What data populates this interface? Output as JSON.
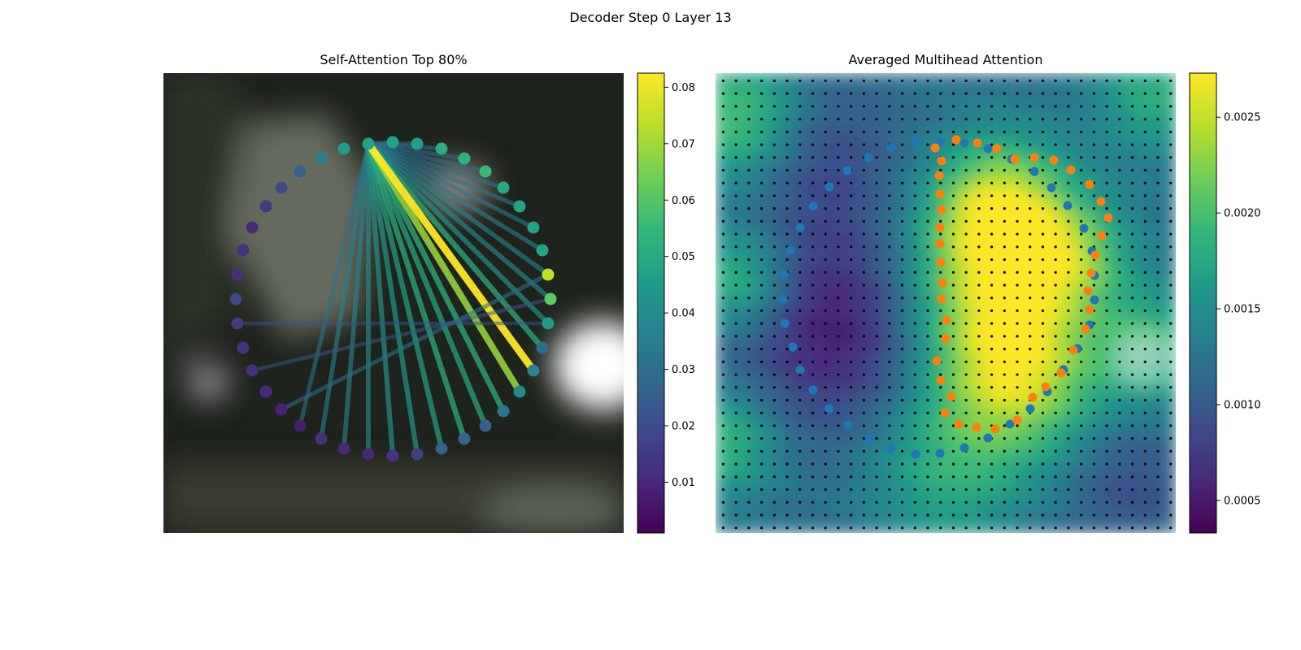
{
  "figure": {
    "title": "Decoder Step 0 Layer 13"
  },
  "chart_data": [
    {
      "type": "scatter",
      "title": "Self-Attention Top 80%",
      "description_of_marks": "contour points on image with attention lines from the selected query point",
      "colorbar": {
        "min": 0.001,
        "max": 0.0825,
        "ticks": [
          0.01,
          0.02,
          0.03,
          0.04,
          0.05,
          0.06,
          0.07,
          0.08
        ]
      },
      "colormap": [
        "#440154",
        "#482878",
        "#3e4989",
        "#31688e",
        "#26828e",
        "#1f9e89",
        "#35b779",
        "#6ece58",
        "#b5de2b",
        "#fde725"
      ],
      "query_point": {
        "x": 252,
        "y": 87
      },
      "points": [
        {
          "x": 252,
          "y": 87,
          "v": 0.048
        },
        {
          "x": 282,
          "y": 85,
          "v": 0.048
        },
        {
          "x": 312,
          "y": 87,
          "v": 0.047
        },
        {
          "x": 342,
          "y": 93,
          "v": 0.051
        },
        {
          "x": 370,
          "y": 105,
          "v": 0.053
        },
        {
          "x": 396,
          "y": 121,
          "v": 0.056
        },
        {
          "x": 418,
          "y": 141,
          "v": 0.05
        },
        {
          "x": 438,
          "y": 164,
          "v": 0.048
        },
        {
          "x": 455,
          "y": 190,
          "v": 0.047
        },
        {
          "x": 466,
          "y": 218,
          "v": 0.048
        },
        {
          "x": 473,
          "y": 248,
          "v": 0.075
        },
        {
          "x": 476,
          "y": 278,
          "v": 0.062
        },
        {
          "x": 473,
          "y": 308,
          "v": 0.045
        },
        {
          "x": 466,
          "y": 338,
          "v": 0.03
        },
        {
          "x": 455,
          "y": 366,
          "v": 0.038
        },
        {
          "x": 438,
          "y": 392,
          "v": 0.04
        },
        {
          "x": 418,
          "y": 416,
          "v": 0.033
        },
        {
          "x": 396,
          "y": 434,
          "v": 0.026
        },
        {
          "x": 370,
          "y": 450,
          "v": 0.028
        },
        {
          "x": 342,
          "y": 462,
          "v": 0.026
        },
        {
          "x": 312,
          "y": 469,
          "v": 0.016
        },
        {
          "x": 282,
          "y": 471,
          "v": 0.014
        },
        {
          "x": 252,
          "y": 469,
          "v": 0.01
        },
        {
          "x": 222,
          "y": 462,
          "v": 0.01
        },
        {
          "x": 194,
          "y": 450,
          "v": 0.013
        },
        {
          "x": 168,
          "y": 434,
          "v": 0.008
        },
        {
          "x": 145,
          "y": 414,
          "v": 0.009
        },
        {
          "x": 126,
          "y": 392,
          "v": 0.011
        },
        {
          "x": 109,
          "y": 366,
          "v": 0.012
        },
        {
          "x": 98,
          "y": 338,
          "v": 0.013
        },
        {
          "x": 91,
          "y": 308,
          "v": 0.015
        },
        {
          "x": 89,
          "y": 278,
          "v": 0.018
        },
        {
          "x": 91,
          "y": 248,
          "v": 0.012
        },
        {
          "x": 98,
          "y": 218,
          "v": 0.013
        },
        {
          "x": 109,
          "y": 190,
          "v": 0.011
        },
        {
          "x": 126,
          "y": 164,
          "v": 0.015
        },
        {
          "x": 145,
          "y": 141,
          "v": 0.02
        },
        {
          "x": 168,
          "y": 121,
          "v": 0.026
        },
        {
          "x": 194,
          "y": 105,
          "v": 0.036
        },
        {
          "x": 222,
          "y": 93,
          "v": 0.046
        }
      ],
      "edges": [
        {
          "to": 14,
          "w": 0.0825
        },
        {
          "to": 15,
          "w": 0.07
        },
        {
          "to": 13,
          "w": 0.052
        },
        {
          "to": 16,
          "w": 0.053
        },
        {
          "to": 12,
          "w": 0.043
        },
        {
          "to": 17,
          "w": 0.05
        },
        {
          "to": 11,
          "w": 0.04
        },
        {
          "to": 18,
          "w": 0.052
        },
        {
          "to": 10,
          "w": 0.038
        },
        {
          "to": 19,
          "w": 0.048
        },
        {
          "to": 20,
          "w": 0.045
        },
        {
          "to": 9,
          "w": 0.036
        },
        {
          "to": 21,
          "w": 0.043
        },
        {
          "to": 8,
          "w": 0.034
        },
        {
          "to": 22,
          "w": 0.04
        },
        {
          "to": 7,
          "w": 0.033
        },
        {
          "to": 23,
          "w": 0.038
        },
        {
          "to": 6,
          "w": 0.032
        },
        {
          "to": 24,
          "w": 0.037
        },
        {
          "to": 5,
          "w": 0.03
        },
        {
          "to": 25,
          "w": 0.032
        },
        {
          "to": 4,
          "w": 0.03
        },
        {
          "to": 3,
          "w": 0.03
        },
        {
          "to": 2,
          "w": 0.03
        },
        {
          "to": 1,
          "w": 0.03
        }
      ],
      "extra_edges": [
        {
          "from": 10,
          "to": 26,
          "w": 0.03
        },
        {
          "from": 11,
          "to": 28,
          "w": 0.024
        },
        {
          "from": 12,
          "to": 30,
          "w": 0.022
        }
      ]
    },
    {
      "type": "heatmap",
      "title": "Averaged Multihead Attention",
      "colorbar": {
        "min": 0.00033,
        "max": 0.00273,
        "ticks": [
          0.0005,
          0.001,
          0.0015,
          0.002,
          0.0025
        ],
        "tick_labels": [
          "0.0005",
          "0.0010",
          "0.0015",
          "0.0020",
          "0.0025"
        ]
      },
      "colormap": [
        "#440154",
        "#482878",
        "#3e4989",
        "#31688e",
        "#26828e",
        "#1f9e89",
        "#35b779",
        "#6ece58",
        "#b5de2b",
        "#fde725"
      ],
      "grid_size": 36,
      "series": [
        {
          "color": "#1f77b4",
          "points": [
            [
              246,
              84
            ],
            [
              216,
              92
            ],
            [
              188,
              104
            ],
            [
              162,
              120
            ],
            [
              140,
              140
            ],
            [
              120,
              164
            ],
            [
              104,
              190
            ],
            [
              92,
              218
            ],
            [
              84,
              248
            ],
            [
              83,
              278
            ],
            [
              85,
              308
            ],
            [
              95,
              337
            ],
            [
              104,
              365
            ],
            [
              120,
              390
            ],
            [
              140,
              413
            ],
            [
              163,
              433
            ],
            [
              189,
              450
            ],
            [
              216,
              462
            ],
            [
              246,
              469
            ],
            [
              276,
              468
            ],
            [
              306,
              461
            ],
            [
              335,
              449
            ],
            [
              362,
              432
            ],
            [
              387,
              413
            ],
            [
              408,
              392
            ],
            [
              428,
              365
            ],
            [
              445,
              339
            ],
            [
              460,
              310
            ],
            [
              466,
              279
            ],
            [
              466,
              249
            ],
            [
              463,
              219
            ],
            [
              453,
              191
            ],
            [
              433,
              163
            ],
            [
              413,
              141
            ],
            [
              392,
              121
            ],
            [
              364,
              106
            ],
            [
              335,
              93
            ],
            [
              306,
              86
            ],
            [
              276,
              84
            ]
          ]
        },
        {
          "color": "#ff7f0e",
          "points": [
            [
              296,
              82
            ],
            [
              322,
              86
            ],
            [
              346,
              93
            ],
            [
              368,
              106
            ],
            [
              392,
              104
            ],
            [
              416,
              107
            ],
            [
              437,
              119
            ],
            [
              460,
              137
            ],
            [
              474,
              158
            ],
            [
              483,
              178
            ],
            [
              475,
              200
            ],
            [
              467,
              224
            ],
            [
              462,
              246
            ],
            [
              458,
              268
            ],
            [
              460,
              291
            ],
            [
              455,
              315
            ],
            [
              440,
              341
            ],
            [
              425,
              369
            ],
            [
              406,
              386
            ],
            [
              390,
              399
            ],
            [
              371,
              427
            ],
            [
              344,
              438
            ],
            [
              321,
              436
            ],
            [
              299,
              432
            ],
            [
              282,
              418
            ],
            [
              290,
              398
            ],
            [
              277,
              378
            ],
            [
              272,
              354
            ],
            [
              283,
              327
            ],
            [
              284,
              304
            ],
            [
              278,
              278
            ],
            [
              279,
              258
            ],
            [
              277,
              233
            ],
            [
              276,
              210
            ],
            [
              276,
              190
            ],
            [
              278,
              168
            ],
            [
              276,
              149
            ],
            [
              275,
              126
            ],
            [
              278,
              108
            ],
            [
              270,
              92
            ]
          ]
        }
      ]
    }
  ]
}
